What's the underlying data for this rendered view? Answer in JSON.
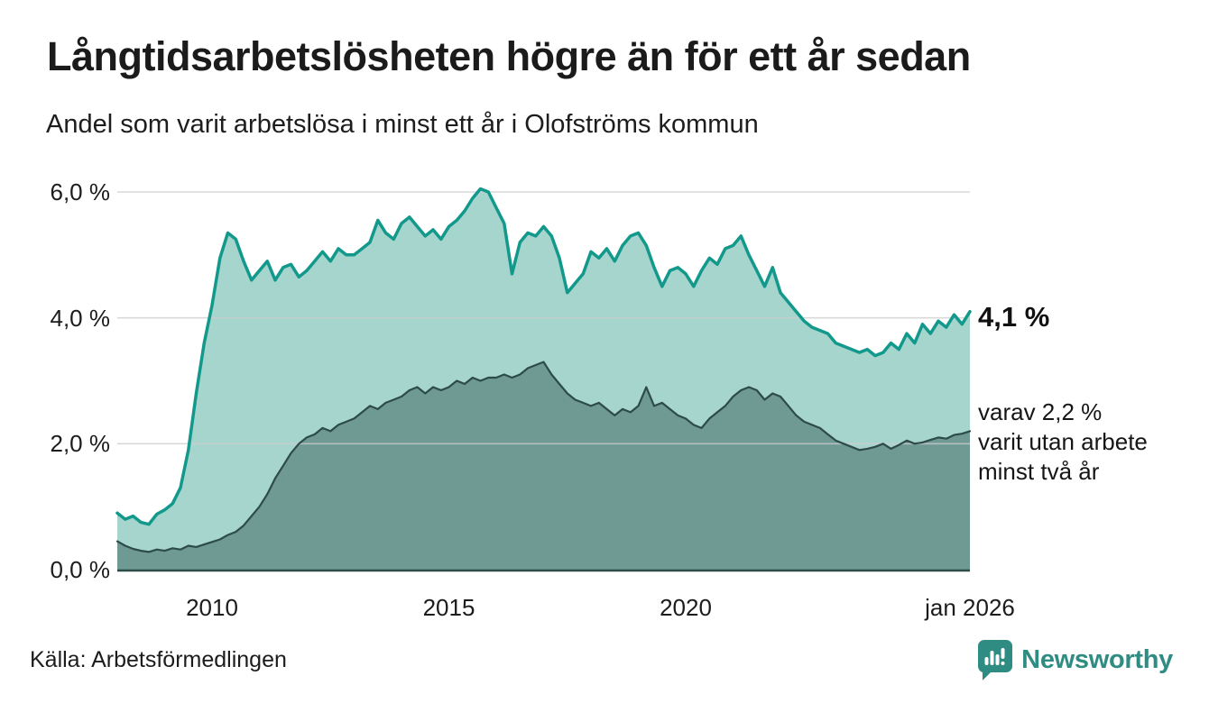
{
  "header": {
    "title": "Långtidsarbetslösheten högre än för ett år sedan",
    "subtitle": "Andel som varit arbetslösa i minst ett år i Olofströms kommun"
  },
  "annotations": {
    "latest_total": "4,1 %",
    "secondary_line1": "varav 2,2 %",
    "secondary_line2": "varit utan arbete",
    "secondary_line3": "minst två år"
  },
  "source": "Källa: Arbetsförmedlingen",
  "brand": {
    "name": "Newsworthy",
    "icon": "bar-chart-speech-bubble-icon",
    "color": "#2F8C82"
  },
  "colors": {
    "background": "#FFFFFF",
    "title_text": "#1B1B1B",
    "grid_line": "#CDCDCD",
    "axis_base_line": "#2D4B47"
  },
  "chart_data": {
    "type": "area",
    "title": "Långtidsarbetslösheten högre än för ett år sedan",
    "subtitle": "Andel som varit arbetslösa i minst ett år i Olofströms kommun",
    "unit": "%",
    "x_start_year": 2008,
    "x_end_label": "jan 2026",
    "points_per_year": 6,
    "x_ticks": [
      {
        "year": 2010,
        "label": "2010"
      },
      {
        "year": 2015,
        "label": "2015"
      },
      {
        "year": 2020,
        "label": "2020"
      },
      {
        "year": 2026,
        "label": "jan 2026"
      }
    ],
    "y_ticks": [
      {
        "value": 0,
        "label": "0,0 %"
      },
      {
        "value": 2,
        "label": "2,0 %"
      },
      {
        "value": 4,
        "label": "4,0 %"
      },
      {
        "value": 6,
        "label": "6,0 %"
      }
    ],
    "ylim": [
      0,
      6.4
    ],
    "grid": true,
    "legend_position": "none",
    "series": [
      {
        "name": "Arbetslösa minst ett år",
        "latest_value": 4.1,
        "line_color": "#12998B",
        "fill_color": "#A6D5CE",
        "line_width": 3.5,
        "values": [
          0.9,
          0.8,
          0.85,
          0.75,
          0.72,
          0.88,
          0.95,
          1.05,
          1.3,
          1.9,
          2.8,
          3.6,
          4.2,
          4.95,
          5.35,
          5.25,
          4.9,
          4.6,
          4.75,
          4.9,
          4.6,
          4.8,
          4.85,
          4.65,
          4.75,
          4.9,
          5.05,
          4.9,
          5.1,
          5.0,
          5.0,
          5.1,
          5.2,
          5.55,
          5.35,
          5.25,
          5.5,
          5.6,
          5.45,
          5.3,
          5.4,
          5.25,
          5.45,
          5.55,
          5.7,
          5.9,
          6.05,
          6.0,
          5.75,
          5.5,
          4.7,
          5.2,
          5.35,
          5.3,
          5.45,
          5.3,
          4.95,
          4.4,
          4.55,
          4.7,
          5.05,
          4.95,
          5.1,
          4.9,
          5.15,
          5.3,
          5.35,
          5.15,
          4.8,
          4.5,
          4.75,
          4.8,
          4.7,
          4.5,
          4.75,
          4.95,
          4.85,
          5.1,
          5.15,
          5.3,
          5.0,
          4.75,
          4.5,
          4.8,
          4.4,
          4.25,
          4.1,
          3.95,
          3.85,
          3.8,
          3.75,
          3.6,
          3.55,
          3.5,
          3.45,
          3.5,
          3.4,
          3.45,
          3.6,
          3.5,
          3.75,
          3.6,
          3.9,
          3.75,
          3.95,
          3.85,
          4.05,
          3.9,
          4.1
        ]
      },
      {
        "name": "Varav arbetslösa minst två år",
        "latest_value": 2.2,
        "line_color": "#2D4B47",
        "fill_color": "#6F9A94",
        "line_width": 2.2,
        "values": [
          0.45,
          0.38,
          0.33,
          0.3,
          0.28,
          0.32,
          0.3,
          0.34,
          0.32,
          0.38,
          0.36,
          0.4,
          0.44,
          0.48,
          0.55,
          0.6,
          0.7,
          0.85,
          1.0,
          1.2,
          1.45,
          1.65,
          1.85,
          2.0,
          2.1,
          2.15,
          2.25,
          2.2,
          2.3,
          2.35,
          2.4,
          2.5,
          2.6,
          2.55,
          2.65,
          2.7,
          2.75,
          2.85,
          2.9,
          2.8,
          2.9,
          2.85,
          2.9,
          3.0,
          2.95,
          3.05,
          3.0,
          3.05,
          3.05,
          3.1,
          3.05,
          3.1,
          3.2,
          3.25,
          3.3,
          3.1,
          2.95,
          2.8,
          2.7,
          2.65,
          2.6,
          2.65,
          2.55,
          2.45,
          2.55,
          2.5,
          2.6,
          2.9,
          2.6,
          2.65,
          2.55,
          2.45,
          2.4,
          2.3,
          2.25,
          2.4,
          2.5,
          2.6,
          2.75,
          2.85,
          2.9,
          2.85,
          2.7,
          2.8,
          2.75,
          2.6,
          2.45,
          2.35,
          2.3,
          2.25,
          2.15,
          2.05,
          2.0,
          1.95,
          1.9,
          1.92,
          1.95,
          2.0,
          1.92,
          1.98,
          2.05,
          2.0,
          2.02,
          2.06,
          2.1,
          2.08,
          2.14,
          2.16,
          2.2
        ]
      }
    ]
  }
}
